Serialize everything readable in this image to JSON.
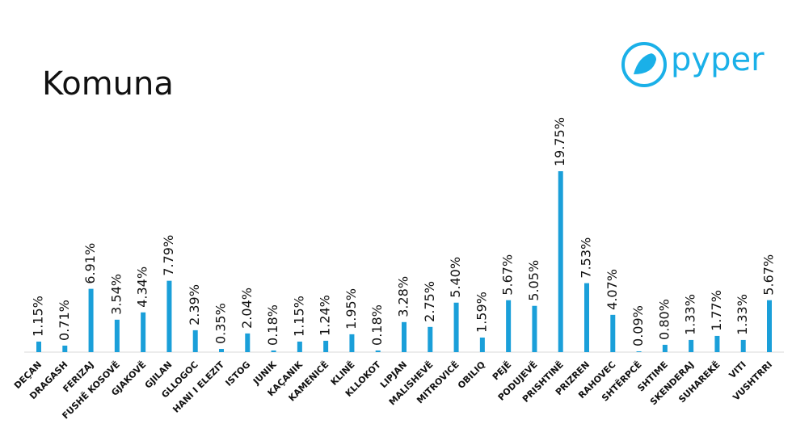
{
  "logo_text": "pyper",
  "chart_data": {
    "type": "bar",
    "title": "Komuna",
    "color": "#1a9fd9",
    "categories": [
      "DEÇAN",
      "DRAGASH",
      "FERIZAJ",
      "FUSHË KOSOVË",
      "GJAKOVË",
      "GJILAN",
      "GLLOGOC",
      "HANI I ELEZIT",
      "ISTOG",
      "JUNIK",
      "KAÇANIK",
      "KAMENICË",
      "KLINË",
      "KLLOKOT",
      "LIPJAN",
      "MALISHEVË",
      "MITROVICË",
      "OBILIQ",
      "PEJË",
      "PODUJEVË",
      "PRISHTINË",
      "PRIZREN",
      "RAHOVEC",
      "SHTËRPCË",
      "SHTIME",
      "SKENDERAJ",
      "SUHAREKË",
      "VITI",
      "VUSHTRRI"
    ],
    "values": [
      1.15,
      0.71,
      6.91,
      3.54,
      4.34,
      7.79,
      2.39,
      0.35,
      2.04,
      0.18,
      1.15,
      1.24,
      1.95,
      0.18,
      3.28,
      2.75,
      5.4,
      1.59,
      5.67,
      5.05,
      19.75,
      7.53,
      4.07,
      0.09,
      0.8,
      1.33,
      1.77,
      1.33,
      5.67
    ],
    "value_labels": [
      "1.15%",
      "0.71%",
      "6.91%",
      "3.54%",
      "4.34%",
      "7.79%",
      "2.39%",
      "0.35%",
      "2.04%",
      "0.18%",
      "1.15%",
      "1.24%",
      "1.95%",
      "0.18%",
      "3.28%",
      "2.75%",
      "5.40%",
      "1.59%",
      "5.67%",
      "5.05%",
      "19.75%",
      "7.53%",
      "4.07%",
      "0.09%",
      "0.80%",
      "1.33%",
      "1.77%",
      "1.33%",
      "5.67%"
    ]
  }
}
